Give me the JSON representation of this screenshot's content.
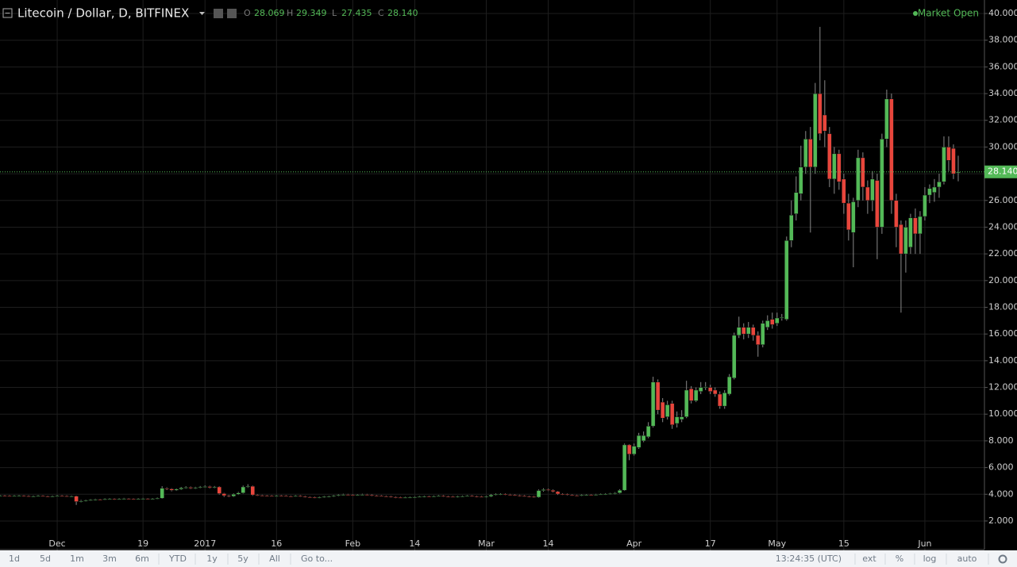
{
  "chart_data": {
    "type": "candlestick",
    "title": "Litecoin / Dollar, D, BITFINEX",
    "status": "Market Open",
    "ohlc_labels": [
      "O",
      "H",
      "L",
      "C"
    ],
    "last_value_labels": [
      "28.069",
      "29.349",
      "27.435",
      "28.140"
    ],
    "up_color": "#53b957",
    "down_color": "#e8463c",
    "grid": true,
    "last_price_line": true,
    "xlim": [
      0,
      206.5
    ],
    "xticks": [
      {
        "value": 12,
        "label": "Dec"
      },
      {
        "value": 30,
        "label": "19"
      },
      {
        "value": 43,
        "label": "2017"
      },
      {
        "value": 58,
        "label": "16"
      },
      {
        "value": 74,
        "label": "Feb"
      },
      {
        "value": 87,
        "label": "14"
      },
      {
        "value": 102,
        "label": "Mar"
      },
      {
        "value": 115,
        "label": "14"
      },
      {
        "value": 133,
        "label": "Apr"
      },
      {
        "value": 149,
        "label": "17"
      },
      {
        "value": 163,
        "label": "May"
      },
      {
        "value": 177,
        "label": "15"
      },
      {
        "value": 194,
        "label": "Jun"
      }
    ],
    "ylim": [
      -0.14,
      41.01
    ],
    "yticks": [
      {
        "value": 2,
        "label": "2.000"
      },
      {
        "value": 4,
        "label": "4.000"
      },
      {
        "value": 6,
        "label": "6.000"
      },
      {
        "value": 8,
        "label": "8.000"
      },
      {
        "value": 10,
        "label": "10.000"
      },
      {
        "value": 12,
        "label": "12.000"
      },
      {
        "value": 14,
        "label": "14.000"
      },
      {
        "value": 16,
        "label": "16.000"
      },
      {
        "value": 18,
        "label": "18.000"
      },
      {
        "value": 20,
        "label": "20.000"
      },
      {
        "value": 22,
        "label": "22.000"
      },
      {
        "value": 24,
        "label": "24.000"
      },
      {
        "value": 26,
        "label": "26.000"
      },
      {
        "value": 28,
        "label": "28.000"
      },
      {
        "value": 30,
        "label": "30.000"
      },
      {
        "value": 32,
        "label": "32.000"
      },
      {
        "value": 34,
        "label": "34.000"
      },
      {
        "value": 36,
        "label": "36.000"
      },
      {
        "value": 38,
        "label": "38.000"
      },
      {
        "value": 40,
        "label": "40.000"
      }
    ],
    "open": [
      3.88,
      3.9,
      3.88,
      3.86,
      3.88,
      3.9,
      3.87,
      3.85,
      3.86,
      3.88,
      3.86,
      3.84,
      3.86,
      3.88,
      3.87,
      3.85,
      3.86,
      3.45,
      3.5,
      3.55,
      3.58,
      3.62,
      3.6,
      3.64,
      3.66,
      3.63,
      3.65,
      3.68,
      3.66,
      3.64,
      3.66,
      3.68,
      3.65,
      3.67,
      3.7,
      4.45,
      4.4,
      4.3,
      4.38,
      4.48,
      4.52,
      4.45,
      4.5,
      4.55,
      4.58,
      4.5,
      4.55,
      4.05,
      3.9,
      3.85,
      4.0,
      4.1,
      4.55,
      4.6,
      3.95,
      3.92,
      3.9,
      3.88,
      3.87,
      3.9,
      3.88,
      3.86,
      3.85,
      3.88,
      3.84,
      3.8,
      3.78,
      3.75,
      3.78,
      3.82,
      3.85,
      3.9,
      3.95,
      3.98,
      3.96,
      3.94,
      3.96,
      3.98,
      3.95,
      3.9,
      3.88,
      3.86,
      3.84,
      3.8,
      3.76,
      3.74,
      3.76,
      3.78,
      3.8,
      3.82,
      3.85,
      3.84,
      3.86,
      3.88,
      3.84,
      3.82,
      3.8,
      3.84,
      3.86,
      3.88,
      3.85,
      3.82,
      3.8,
      3.84,
      3.95,
      4.0,
      4.02,
      3.98,
      3.95,
      3.92,
      3.88,
      3.85,
      3.82,
      3.78,
      4.28,
      4.35,
      4.3,
      4.2,
      4.02,
      4.0,
      3.95,
      3.92,
      3.9,
      3.94,
      3.96,
      3.95,
      3.98,
      4.0,
      4.02,
      4.05,
      4.1,
      4.3,
      7.7,
      7.0,
      7.5,
      8.0,
      8.3,
      9.1,
      12.4,
      10.9,
      9.8,
      10.8,
      9.3,
      9.6,
      9.8,
      11.9,
      11.0,
      11.7,
      12.0,
      12.0,
      11.8,
      11.5,
      10.6,
      11.5,
      12.7,
      15.9,
      16.5,
      16.0,
      16.5,
      15.9,
      15.2,
      16.5,
      17.1,
      16.8,
      17.2,
      17.1,
      23.0,
      25.0,
      26.5,
      28.5,
      30.6,
      28.5,
      34.0,
      32.4,
      31.0,
      27.6,
      29.5,
      27.6,
      25.8,
      23.6,
      26.0,
      29.2,
      27.0,
      26.0,
      27.5,
      24.0,
      30.6,
      33.6,
      26.0,
      24.2,
      22.0,
      22.5,
      24.7,
      23.5,
      24.8,
      26.4,
      26.6,
      27.0,
      27.4,
      30.0,
      29.9,
      28.069
    ],
    "high": [
      3.96,
      3.95,
      3.93,
      3.93,
      3.95,
      3.94,
      3.92,
      3.91,
      3.93,
      3.92,
      3.9,
      3.91,
      3.94,
      3.93,
      3.92,
      3.91,
      3.9,
      3.58,
      3.6,
      3.63,
      3.67,
      3.66,
      3.69,
      3.71,
      3.7,
      3.7,
      3.73,
      3.72,
      3.7,
      3.71,
      3.73,
      3.72,
      3.72,
      3.75,
      4.6,
      4.52,
      4.45,
      4.44,
      4.55,
      4.6,
      4.58,
      4.56,
      4.62,
      4.66,
      4.64,
      4.62,
      4.6,
      4.1,
      3.96,
      4.06,
      4.18,
      4.65,
      4.75,
      4.65,
      4.0,
      3.97,
      3.95,
      3.93,
      3.95,
      3.95,
      3.93,
      3.91,
      3.93,
      3.93,
      3.89,
      3.85,
      3.83,
      3.83,
      3.87,
      3.9,
      3.95,
      4.0,
      4.04,
      4.03,
      4.01,
      4.01,
      4.04,
      4.03,
      4.0,
      3.95,
      3.93,
      3.91,
      3.89,
      3.85,
      3.81,
      3.81,
      3.83,
      3.85,
      3.87,
      3.9,
      3.9,
      3.91,
      3.93,
      3.93,
      3.89,
      3.87,
      3.89,
      3.91,
      3.93,
      3.93,
      3.9,
      3.87,
      3.89,
      4.02,
      4.06,
      4.08,
      4.07,
      4.03,
      4.0,
      3.97,
      3.93,
      3.9,
      3.87,
      4.36,
      4.45,
      4.42,
      4.36,
      4.25,
      4.08,
      4.05,
      4.0,
      3.97,
      3.99,
      4.01,
      4.01,
      4.03,
      4.05,
      4.08,
      4.1,
      4.16,
      4.38,
      7.8,
      7.75,
      7.8,
      8.6,
      8.7,
      9.4,
      12.8,
      12.6,
      11.2,
      11.0,
      11.0,
      10.2,
      10.3,
      12.5,
      12.1,
      12.0,
      12.4,
      12.4,
      12.2,
      12.0,
      11.7,
      11.8,
      13.0,
      16.1,
      17.3,
      16.8,
      16.9,
      16.7,
      16.2,
      17.0,
      17.4,
      17.6,
      17.6,
      17.5,
      23.3,
      26.0,
      27.8,
      30.1,
      31.2,
      31.5,
      34.8,
      39.0,
      35.0,
      31.5,
      30.0,
      29.8,
      28.0,
      26.5,
      26.2,
      29.8,
      29.6,
      27.5,
      28.2,
      28.0,
      31.0,
      34.3,
      34.0,
      26.5,
      24.5,
      24.5,
      25.0,
      25.4,
      25.2,
      27.0,
      27.2,
      27.6,
      28.0,
      30.8,
      30.8,
      30.2,
      29.349
    ],
    "low": [
      3.84,
      3.83,
      3.81,
      3.82,
      3.84,
      3.82,
      3.8,
      3.8,
      3.82,
      3.81,
      3.79,
      3.79,
      3.82,
      3.82,
      3.8,
      3.8,
      3.2,
      3.4,
      3.46,
      3.5,
      3.53,
      3.55,
      3.56,
      3.6,
      3.58,
      3.59,
      3.61,
      3.61,
      3.59,
      3.6,
      3.62,
      3.6,
      3.61,
      3.62,
      3.66,
      4.32,
      4.22,
      4.25,
      4.33,
      4.42,
      4.4,
      4.4,
      4.45,
      4.5,
      4.44,
      4.45,
      3.98,
      3.8,
      3.78,
      3.8,
      3.95,
      4.05,
      4.48,
      3.88,
      3.86,
      3.85,
      3.83,
      3.82,
      3.82,
      3.83,
      3.81,
      3.8,
      3.8,
      3.79,
      3.75,
      3.73,
      3.7,
      3.7,
      3.73,
      3.77,
      3.8,
      3.85,
      3.9,
      3.91,
      3.89,
      3.89,
      3.91,
      3.9,
      3.85,
      3.83,
      3.81,
      3.79,
      3.75,
      3.71,
      3.69,
      3.69,
      3.71,
      3.73,
      3.75,
      3.77,
      3.79,
      3.79,
      3.81,
      3.79,
      3.77,
      3.75,
      3.75,
      3.79,
      3.81,
      3.8,
      3.77,
      3.75,
      3.75,
      3.79,
      3.9,
      3.94,
      3.93,
      3.9,
      3.87,
      3.83,
      3.8,
      3.77,
      3.73,
      3.74,
      4.2,
      4.24,
      4.14,
      3.95,
      3.94,
      3.9,
      3.87,
      3.85,
      3.85,
      3.89,
      3.9,
      3.9,
      3.93,
      3.95,
      3.97,
      4.0,
      4.05,
      4.25,
      6.55,
      6.9,
      7.4,
      7.9,
      8.2,
      9.0,
      10.0,
      9.4,
      9.6,
      8.9,
      9.0,
      9.4,
      9.7,
      10.8,
      10.9,
      11.5,
      11.8,
      11.5,
      11.3,
      10.4,
      10.4,
      11.4,
      12.6,
      15.7,
      15.6,
      15.7,
      15.5,
      14.3,
      15.0,
      16.3,
      16.4,
      16.6,
      17.0,
      17.0,
      22.5,
      24.5,
      26.0,
      28.0,
      23.6,
      28.0,
      30.5,
      30.0,
      27.0,
      26.5,
      26.8,
      25.0,
      23.0,
      21.0,
      25.5,
      26.0,
      25.0,
      25.2,
      21.6,
      23.5,
      30.0,
      25.0,
      22.5,
      17.6,
      20.6,
      22.0,
      22.0,
      22.0,
      24.5,
      25.8,
      25.9,
      26.2,
      27.2,
      28.2,
      27.6,
      27.435
    ],
    "close": [
      3.9,
      3.88,
      3.86,
      3.88,
      3.9,
      3.87,
      3.85,
      3.86,
      3.88,
      3.86,
      3.84,
      3.86,
      3.88,
      3.87,
      3.85,
      3.86,
      3.45,
      3.5,
      3.55,
      3.58,
      3.62,
      3.6,
      3.64,
      3.66,
      3.63,
      3.65,
      3.68,
      3.66,
      3.64,
      3.66,
      3.68,
      3.65,
      3.67,
      3.7,
      4.45,
      4.4,
      4.3,
      4.38,
      4.48,
      4.52,
      4.45,
      4.5,
      4.55,
      4.58,
      4.5,
      4.55,
      4.05,
      3.9,
      3.85,
      4.0,
      4.1,
      4.55,
      4.6,
      3.95,
      3.92,
      3.9,
      3.88,
      3.87,
      3.9,
      3.88,
      3.86,
      3.85,
      3.88,
      3.84,
      3.8,
      3.78,
      3.75,
      3.78,
      3.82,
      3.85,
      3.9,
      3.95,
      3.98,
      3.96,
      3.94,
      3.96,
      3.98,
      3.95,
      3.9,
      3.88,
      3.86,
      3.84,
      3.8,
      3.76,
      3.74,
      3.76,
      3.78,
      3.8,
      3.82,
      3.85,
      3.84,
      3.86,
      3.88,
      3.84,
      3.82,
      3.8,
      3.84,
      3.86,
      3.88,
      3.85,
      3.82,
      3.8,
      3.84,
      3.95,
      4.0,
      4.02,
      3.98,
      3.95,
      3.92,
      3.88,
      3.85,
      3.82,
      3.78,
      4.28,
      4.35,
      4.3,
      4.2,
      4.02,
      4.0,
      3.95,
      3.92,
      3.9,
      3.94,
      3.96,
      3.95,
      3.98,
      4.0,
      4.02,
      4.05,
      4.1,
      4.3,
      7.7,
      7.0,
      7.6,
      8.4,
      8.4,
      9.1,
      12.4,
      10.3,
      9.7,
      10.7,
      9.2,
      9.8,
      9.8,
      11.8,
      11.0,
      11.8,
      12.0,
      12.05,
      11.7,
      11.5,
      10.6,
      11.6,
      12.8,
      15.9,
      16.5,
      16.0,
      16.5,
      15.9,
      15.2,
      16.8,
      17.0,
      16.7,
      17.2,
      17.25,
      23.0,
      24.9,
      26.6,
      28.5,
      30.6,
      28.5,
      34.0,
      31.0,
      31.2,
      27.6,
      29.5,
      27.4,
      25.8,
      23.8,
      25.9,
      29.2,
      27.0,
      26.0,
      27.6,
      24.0,
      30.6,
      33.6,
      26.0,
      24.0,
      22.0,
      24.0,
      24.7,
      23.5,
      24.8,
      26.4,
      26.9,
      27.0,
      27.4,
      30.0,
      29.0,
      28.0,
      28.14
    ]
  },
  "toolbar": {
    "ranges": [
      "1d",
      "5d",
      "1m",
      "3m",
      "6m",
      "YTD",
      "1y",
      "5y",
      "All"
    ],
    "goto": "Go to...",
    "time": "13:24:35 (UTC)",
    "options": [
      "ext",
      "%",
      "log",
      "auto"
    ]
  }
}
